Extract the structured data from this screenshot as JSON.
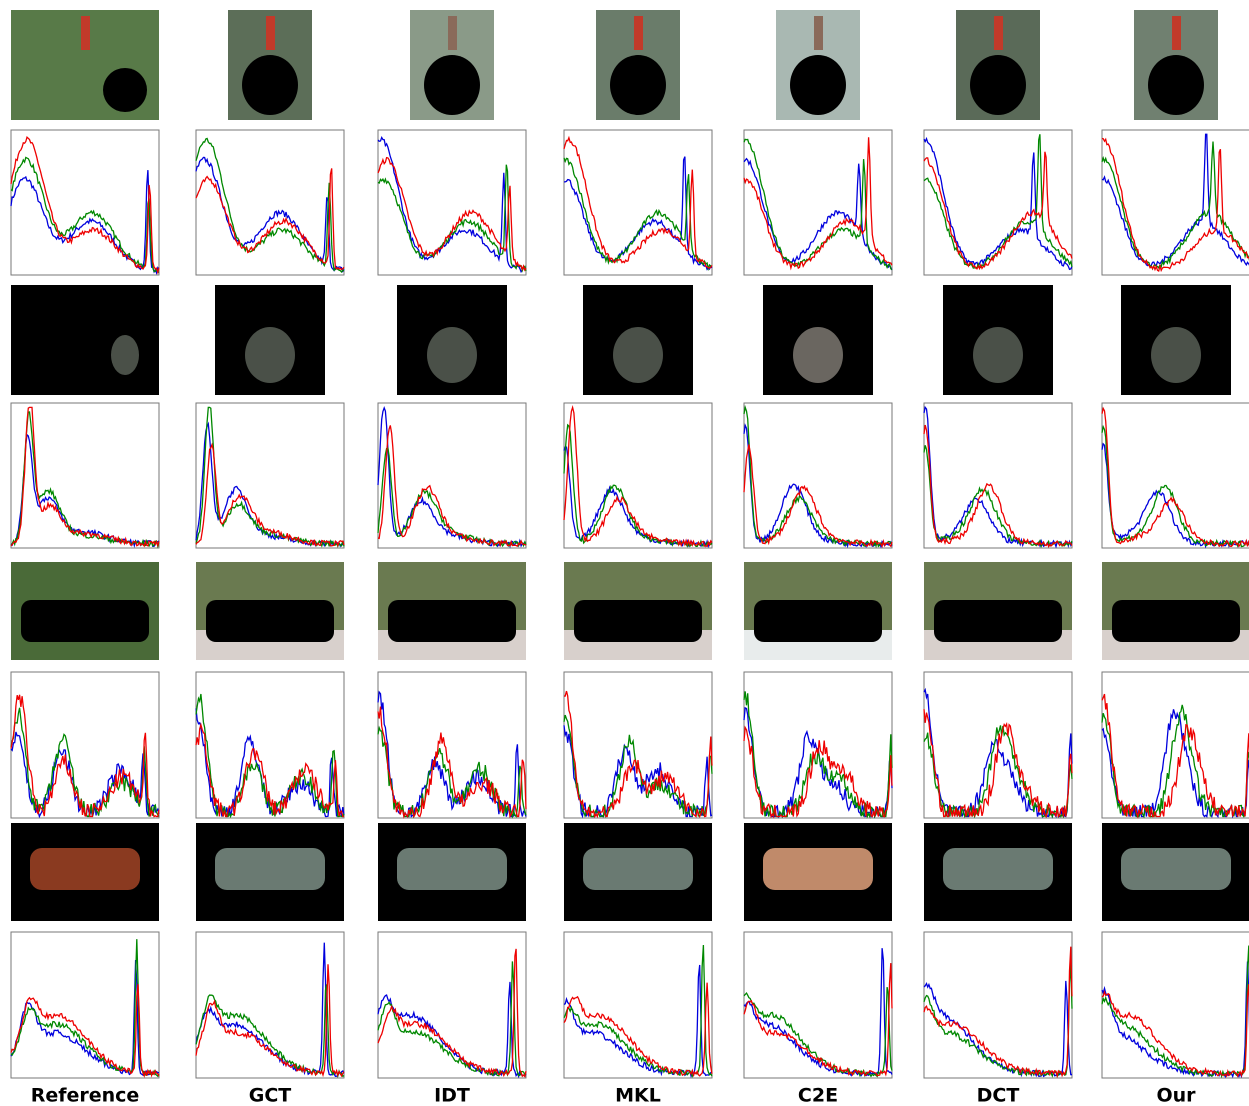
{
  "columns": [
    "Reference",
    "GCT",
    "IDT",
    "MKL",
    "C2E",
    "DCT",
    "Our"
  ]
}
